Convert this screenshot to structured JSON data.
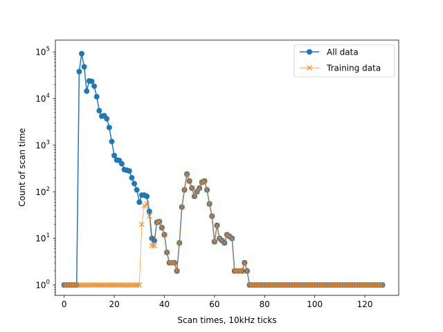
{
  "chart_data": {
    "type": "line",
    "xlabel": "Scan times, 10kHz ticks",
    "ylabel": "Count of scan time",
    "yscale": "log",
    "xlim": [
      -3.5,
      133.5
    ],
    "ylim": [
      0.6,
      180000
    ],
    "xticks": [
      0,
      20,
      40,
      60,
      80,
      100,
      120
    ],
    "xtick_labels": [
      "0",
      "20",
      "40",
      "60",
      "80",
      "100",
      "120"
    ],
    "yticks": [
      1,
      10,
      100,
      1000,
      10000,
      100000
    ],
    "ytick_labels": [
      {
        "base": "10",
        "exp": "0"
      },
      {
        "base": "10",
        "exp": "1"
      },
      {
        "base": "10",
        "exp": "2"
      },
      {
        "base": "10",
        "exp": "3"
      },
      {
        "base": "10",
        "exp": "4"
      },
      {
        "base": "10",
        "exp": "5"
      }
    ],
    "legend_position": "top-right",
    "series": [
      {
        "name": "All data",
        "color": "#1f77b4",
        "marker": "circle",
        "x": [
          0,
          1,
          2,
          3,
          4,
          5,
          6,
          7,
          8,
          9,
          10,
          11,
          12,
          13,
          14,
          15,
          16,
          17,
          18,
          19,
          20,
          21,
          22,
          23,
          24,
          25,
          26,
          27,
          28,
          29,
          30,
          31,
          32,
          33,
          34,
          35,
          36,
          37,
          38,
          39,
          40,
          41,
          42,
          43,
          44,
          45,
          46,
          47,
          48,
          49,
          50,
          51,
          52,
          53,
          54,
          55,
          56,
          57,
          58,
          59,
          60,
          61,
          62,
          63,
          64,
          65,
          66,
          67,
          68,
          69,
          70,
          71,
          72,
          73,
          74,
          75,
          76,
          77,
          78,
          79,
          80,
          81,
          82,
          83,
          84,
          85,
          86,
          87,
          88,
          89,
          90,
          91,
          92,
          93,
          94,
          95,
          96,
          97,
          98,
          99,
          100,
          101,
          102,
          103,
          104,
          105,
          106,
          107,
          108,
          109,
          110,
          111,
          112,
          113,
          114,
          115,
          116,
          117,
          118,
          119,
          120,
          121,
          122,
          123,
          124,
          125,
          126,
          127
        ],
        "y": [
          1,
          1,
          1,
          1,
          1,
          1,
          38000,
          92000,
          48000,
          14500,
          24000,
          23500,
          18500,
          11000,
          5500,
          4200,
          4300,
          3700,
          2400,
          1200,
          600,
          480,
          470,
          400,
          300,
          290,
          280,
          200,
          150,
          110,
          60,
          85,
          85,
          80,
          38,
          10,
          9,
          22,
          23,
          17,
          12,
          5,
          3,
          3,
          3,
          2,
          8,
          47,
          110,
          240,
          170,
          120,
          80,
          100,
          120,
          160,
          170,
          110,
          55,
          30,
          8.5,
          19,
          10,
          9,
          8,
          12,
          11,
          10,
          2,
          2,
          2,
          2,
          3,
          2,
          1,
          1,
          1,
          1,
          1,
          1,
          1,
          1,
          1,
          1,
          1,
          1,
          1,
          1,
          1,
          1,
          1,
          1,
          1,
          1,
          1,
          1,
          1,
          1,
          1,
          1,
          1,
          1,
          1,
          1,
          1,
          1,
          1,
          1,
          1,
          1,
          1,
          1,
          1,
          1,
          1,
          1,
          1,
          1,
          1,
          1,
          1,
          1,
          1,
          1,
          1,
          1,
          1,
          1
        ]
      },
      {
        "name": "Training data",
        "color": "#ff7f0e",
        "marker": "x",
        "x": [
          0,
          1,
          2,
          3,
          4,
          5,
          6,
          7,
          8,
          9,
          10,
          11,
          12,
          13,
          14,
          15,
          16,
          17,
          18,
          19,
          20,
          21,
          22,
          23,
          24,
          25,
          26,
          27,
          28,
          29,
          30,
          31,
          32,
          33,
          34,
          35,
          36,
          37,
          38,
          39,
          40,
          41,
          42,
          43,
          44,
          45,
          46,
          47,
          48,
          49,
          50,
          51,
          52,
          53,
          54,
          55,
          56,
          57,
          58,
          59,
          60,
          61,
          62,
          63,
          64,
          65,
          66,
          67,
          68,
          69,
          70,
          71,
          72,
          73,
          74,
          75,
          76,
          77,
          78,
          79,
          80,
          81,
          82,
          83,
          84,
          85,
          86,
          87,
          88,
          89,
          90,
          91,
          92,
          93,
          94,
          95,
          96,
          97,
          98,
          99,
          100,
          101,
          102,
          103,
          104,
          105,
          106,
          107,
          108,
          109,
          110,
          111,
          112,
          113,
          114,
          115,
          116,
          117,
          118,
          119,
          120,
          121,
          122,
          123,
          124,
          125,
          126,
          127
        ],
        "y": [
          1,
          1,
          1,
          1,
          1,
          1,
          1,
          1,
          1,
          1,
          1,
          1,
          1,
          1,
          1,
          1,
          1,
          1,
          1,
          1,
          1,
          1,
          1,
          1,
          1,
          1,
          1,
          1,
          1,
          1,
          1,
          20,
          50,
          55,
          30,
          7,
          7,
          22,
          23,
          17,
          12,
          5,
          3,
          3,
          3,
          2,
          8,
          47,
          110,
          240,
          170,
          120,
          80,
          100,
          120,
          160,
          170,
          110,
          55,
          30,
          8.5,
          19,
          10,
          9,
          8,
          12,
          11,
          10,
          2,
          2,
          2,
          2,
          3,
          2,
          1,
          1,
          1,
          1,
          1,
          1,
          1,
          1,
          1,
          1,
          1,
          1,
          1,
          1,
          1,
          1,
          1,
          1,
          1,
          1,
          1,
          1,
          1,
          1,
          1,
          1,
          1,
          1,
          1,
          1,
          1,
          1,
          1,
          1,
          1,
          1,
          1,
          1,
          1,
          1,
          1,
          1,
          1,
          1,
          1,
          1,
          1,
          1,
          1,
          1,
          1,
          1,
          1,
          1
        ]
      }
    ]
  }
}
